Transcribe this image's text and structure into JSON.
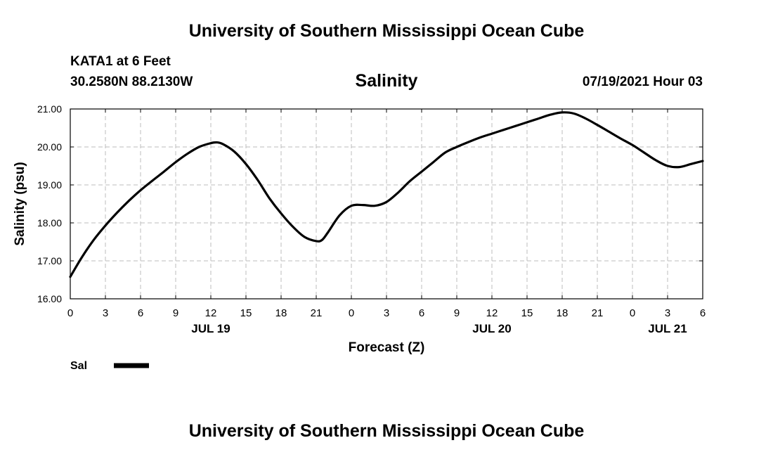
{
  "header": {
    "title": "University of Southern Mississippi Ocean Cube",
    "station": "KATA1 at 6 Feet",
    "coordinates": "30.2580N  88.2130W",
    "chart_title": "Salinity",
    "run_time": "07/19/2021 Hour 03"
  },
  "footer": {
    "title": "University of Southern Mississippi Ocean Cube"
  },
  "chart_data": {
    "type": "line",
    "title": "Salinity",
    "xlabel": "Forecast (Z)",
    "ylabel": "Salinity (psu)",
    "ylim": [
      16.0,
      21.0
    ],
    "yticks": [
      "16.00",
      "17.00",
      "18.00",
      "19.00",
      "20.00",
      "21.00"
    ],
    "xlim_hours": [
      0,
      54
    ],
    "x_tick_labels": [
      "0",
      "3",
      "6",
      "9",
      "12",
      "15",
      "18",
      "21",
      "0",
      "3",
      "6",
      "9",
      "12",
      "15",
      "18",
      "21",
      "0",
      "3",
      "6"
    ],
    "date_labels": [
      {
        "label": "JUL 19",
        "hour": 12
      },
      {
        "label": "JUL 20",
        "hour": 36
      },
      {
        "label": "JUL 21",
        "hour": 51
      }
    ],
    "grid": true,
    "legend": [
      {
        "name": "Sal",
        "color": "#000000"
      }
    ],
    "series": [
      {
        "name": "Sal",
        "x_hours": [
          0,
          1,
          2,
          3,
          4,
          5,
          6,
          7,
          8,
          9,
          10,
          11,
          12,
          12.5,
          13,
          14,
          15,
          16,
          17,
          18,
          19,
          20,
          21,
          21.5,
          22,
          23,
          24,
          25,
          26,
          27,
          28,
          29,
          30,
          31,
          32,
          33,
          34,
          35,
          36,
          37,
          38,
          39,
          40,
          41,
          42,
          43,
          44,
          45,
          46,
          47,
          48,
          49,
          50,
          51,
          52,
          53,
          54
        ],
        "values": [
          16.58,
          17.1,
          17.55,
          17.93,
          18.27,
          18.58,
          18.86,
          19.11,
          19.35,
          19.6,
          19.82,
          20.0,
          20.1,
          20.12,
          20.08,
          19.88,
          19.55,
          19.13,
          18.65,
          18.25,
          17.9,
          17.63,
          17.52,
          17.55,
          17.75,
          18.2,
          18.45,
          18.47,
          18.45,
          18.55,
          18.8,
          19.1,
          19.35,
          19.6,
          19.85,
          20.0,
          20.13,
          20.25,
          20.35,
          20.45,
          20.55,
          20.65,
          20.75,
          20.85,
          20.91,
          20.88,
          20.75,
          20.58,
          20.4,
          20.22,
          20.05,
          19.85,
          19.65,
          19.5,
          19.47,
          19.55,
          19.63
        ]
      }
    ]
  }
}
